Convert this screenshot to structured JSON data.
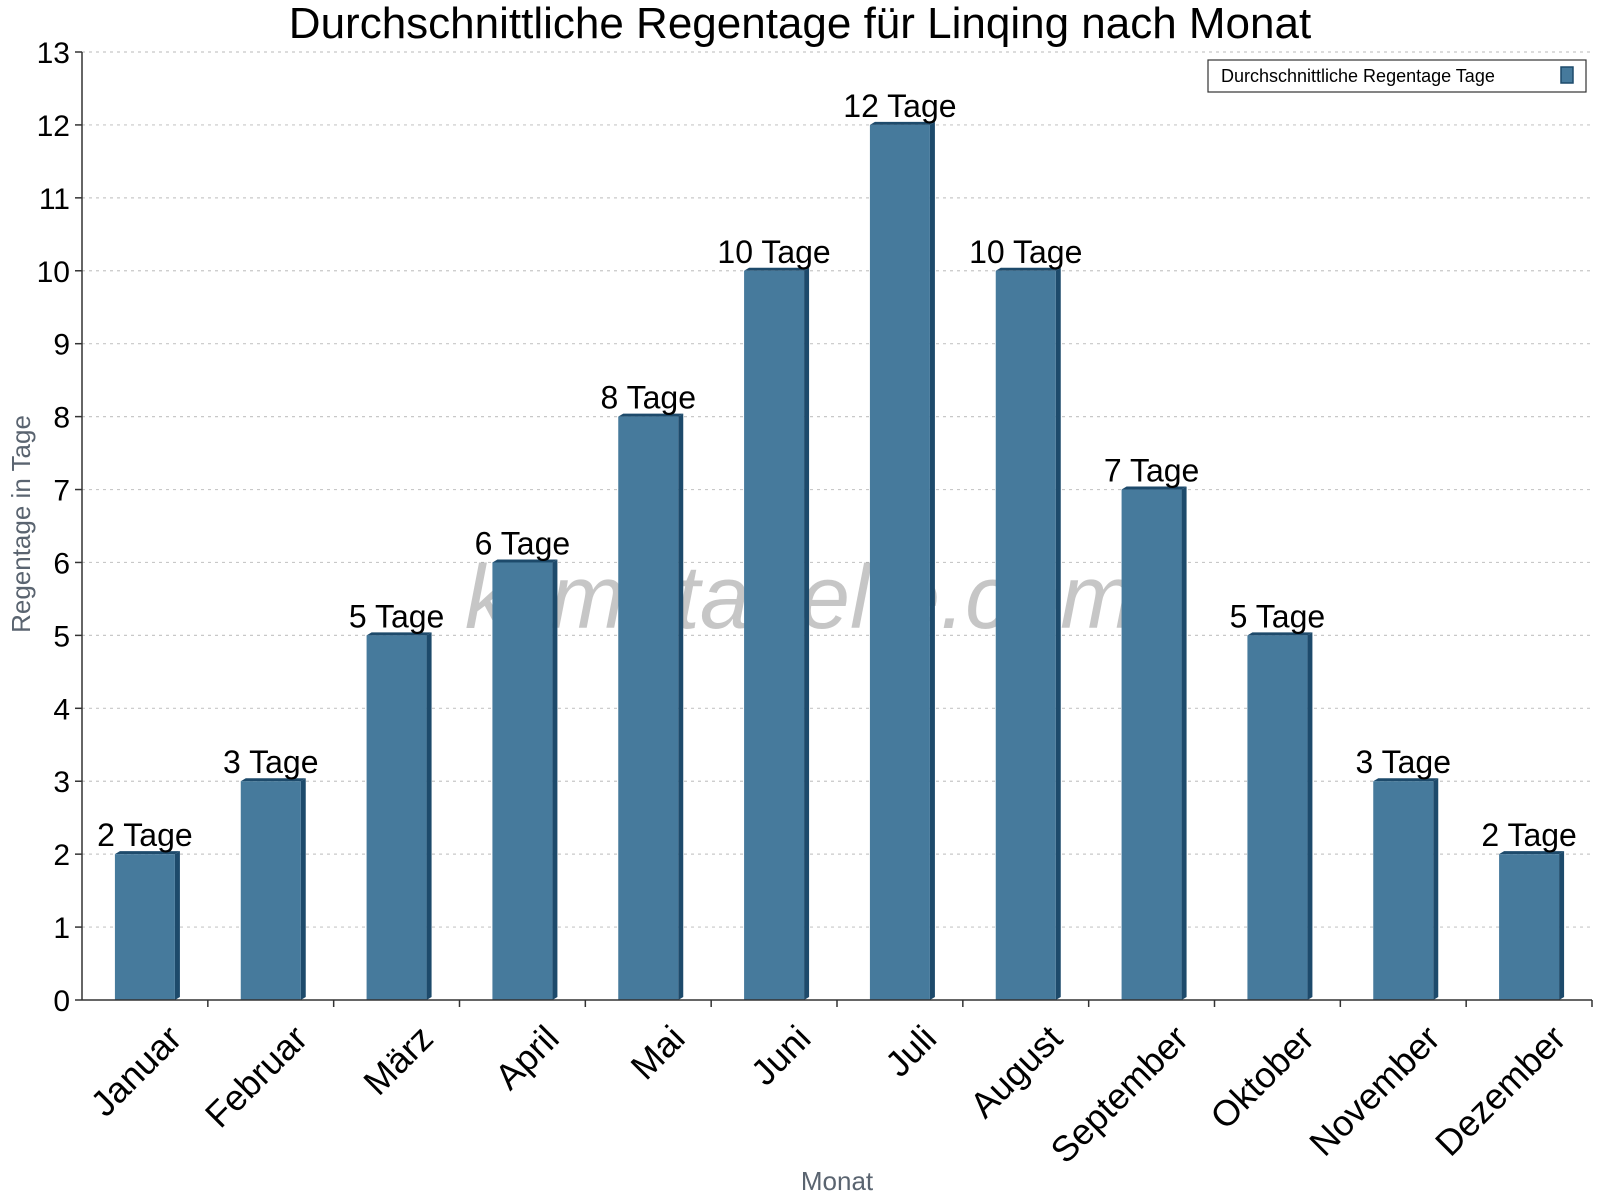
{
  "chart_data": {
    "type": "bar",
    "title": "Durchschnittliche Regentage für Linqing nach Monat",
    "xlabel": "Monat",
    "ylabel": "Regentage in Tage",
    "ylim": [
      0,
      13
    ],
    "yticks": [
      0,
      1,
      2,
      3,
      4,
      5,
      6,
      7,
      8,
      9,
      10,
      11,
      12,
      13
    ],
    "grid": true,
    "legend_position": "top-right",
    "categories": [
      "Januar",
      "Februar",
      "März",
      "April",
      "Mai",
      "Juni",
      "Juli",
      "August",
      "September",
      "Oktober",
      "November",
      "Dezember"
    ],
    "series": [
      {
        "name": "Durchschnittliche Regentage Tage",
        "values": [
          2,
          3,
          5,
          6,
          8,
          10,
          12,
          10,
          7,
          5,
          3,
          2
        ],
        "labels": [
          "2 Tage",
          "3 Tage",
          "5 Tage",
          "6 Tage",
          "8 Tage",
          "10 Tage",
          "12 Tage",
          "10 Tage",
          "7 Tage",
          "5 Tage",
          "3 Tage",
          "2 Tage"
        ],
        "color": "#467a9c",
        "side_color": "#1d4a6b"
      }
    ]
  },
  "watermark": "klimatabelle.com"
}
